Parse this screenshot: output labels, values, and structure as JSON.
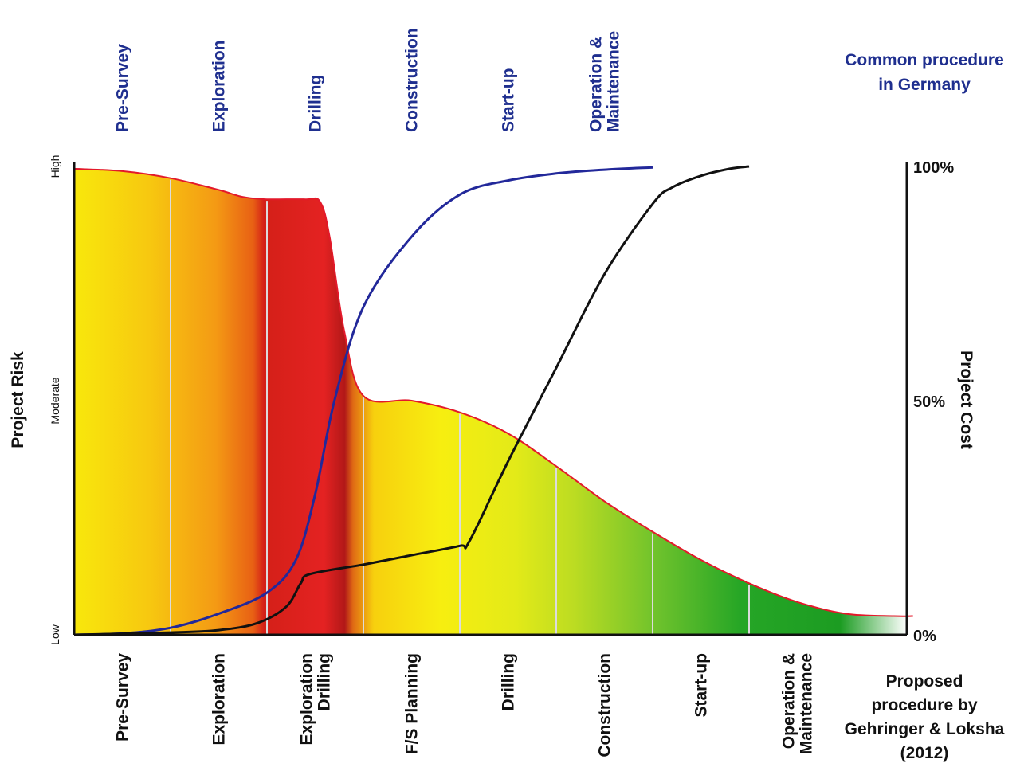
{
  "chart_data": {
    "type": "area",
    "x": [
      0,
      1,
      2,
      3,
      4,
      5,
      6,
      7,
      8
    ],
    "top_phases": {
      "legend": [
        "Common procedure",
        "in Germany"
      ],
      "labels": [
        [
          "Pre-Survey"
        ],
        [
          "Exploration"
        ],
        [
          "Drilling"
        ],
        [
          "Construction"
        ],
        [
          "Start-up"
        ],
        [
          "Operation &",
          "Maintenance"
        ]
      ],
      "centers": [
        0.5,
        1.5,
        2.5,
        3.5,
        4.5,
        5.5
      ]
    },
    "bottom_phases": {
      "legend": [
        "Proposed",
        "procedure by",
        "Gehringer & Loksha",
        "(2012)"
      ],
      "labels": [
        [
          "Pre-Survey"
        ],
        [
          "Exploration"
        ],
        [
          "Exploration",
          "Drilling"
        ],
        [
          "F/S Planning"
        ],
        [
          "Drilling"
        ],
        [
          "Construction"
        ],
        [
          "Start-up"
        ],
        [
          "Operation &",
          "Maintenance"
        ]
      ],
      "centers": [
        0.5,
        1.5,
        2.5,
        3.5,
        4.5,
        5.5,
        6.5,
        7.5
      ]
    },
    "phase_boundaries": [
      1,
      2,
      3,
      4,
      5,
      6,
      7
    ],
    "left_axis": {
      "label": "Project Risk",
      "ticks": [
        "Low",
        "Moderate",
        "High"
      ],
      "ylim": [
        0,
        1
      ]
    },
    "right_axis": {
      "label": "Project Cost",
      "ticks": [
        "0%",
        "50%",
        "100%"
      ],
      "ylim": [
        0,
        100
      ]
    },
    "series": [
      {
        "role": "risk",
        "points": [
          [
            0,
            0.995
          ],
          [
            0.5,
            0.99
          ],
          [
            1,
            0.975
          ],
          [
            1.5,
            0.95
          ],
          [
            1.75,
            0.935
          ],
          [
            2,
            0.93
          ],
          [
            2.4,
            0.93
          ],
          [
            2.55,
            0.925
          ],
          [
            2.65,
            0.85
          ],
          [
            2.8,
            0.65
          ],
          [
            3,
            0.51
          ],
          [
            3.5,
            0.5
          ],
          [
            4,
            0.475
          ],
          [
            4.5,
            0.43
          ],
          [
            5,
            0.36
          ],
          [
            5.5,
            0.285
          ],
          [
            6,
            0.22
          ],
          [
            6.5,
            0.16
          ],
          [
            7,
            0.11
          ],
          [
            7.5,
            0.07
          ],
          [
            8,
            0.045
          ],
          [
            8.5,
            0.04
          ],
          [
            8.7,
            0.04
          ]
        ]
      },
      {
        "role": "common procedure cost",
        "color": "#22289a",
        "points": [
          [
            0,
            0
          ],
          [
            0.5,
            0.3
          ],
          [
            1,
            1.5
          ],
          [
            1.5,
            4.5
          ],
          [
            2,
            9
          ],
          [
            2.3,
            16
          ],
          [
            2.5,
            30
          ],
          [
            2.7,
            50
          ],
          [
            3,
            70
          ],
          [
            3.5,
            85
          ],
          [
            4,
            94
          ],
          [
            4.5,
            97
          ],
          [
            5,
            98.5
          ],
          [
            5.5,
            99.3
          ],
          [
            6,
            99.8
          ]
        ]
      },
      {
        "role": "proposed procedure cost",
        "color": "#111111",
        "points": [
          [
            0,
            0
          ],
          [
            1,
            0.5
          ],
          [
            1.5,
            1
          ],
          [
            1.9,
            2.5
          ],
          [
            2.2,
            6
          ],
          [
            2.35,
            11
          ],
          [
            2.45,
            13
          ],
          [
            3,
            15
          ],
          [
            3.5,
            17
          ],
          [
            4,
            19
          ],
          [
            4.1,
            20
          ],
          [
            4.5,
            37
          ],
          [
            5,
            57
          ],
          [
            5.5,
            77
          ],
          [
            6,
            92
          ],
          [
            6.2,
            95.5
          ],
          [
            6.5,
            98
          ],
          [
            6.8,
            99.5
          ],
          [
            7,
            100
          ]
        ]
      }
    ]
  }
}
